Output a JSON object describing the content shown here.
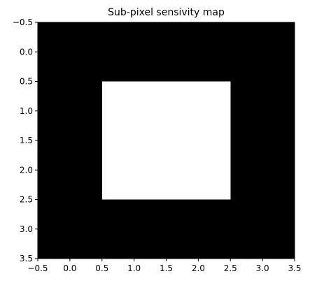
{
  "chart_data": {
    "type": "heatmap",
    "title": "Sub-pixel sensivity map",
    "xlabel": "",
    "ylabel": "",
    "xlim": [
      -0.5,
      3.5
    ],
    "ylim": [
      3.5,
      -0.5
    ],
    "y_axis_inverted": true,
    "xticks": [
      -0.5,
      0.0,
      0.5,
      1.0,
      1.5,
      2.0,
      2.5,
      3.0,
      3.5
    ],
    "xtick_labels": [
      "−0.5",
      "0.0",
      "0.5",
      "1.0",
      "1.5",
      "2.0",
      "2.5",
      "3.0",
      "3.5"
    ],
    "yticks": [
      -0.5,
      0.0,
      0.5,
      1.0,
      1.5,
      2.0,
      2.5,
      3.0,
      3.5
    ],
    "ytick_labels": [
      "−0.5",
      "0.0",
      "0.5",
      "1.0",
      "1.5",
      "2.0",
      "2.5",
      "3.0",
      "3.5"
    ],
    "colormap": "gray",
    "colors": {
      "low": "#000000",
      "high": "#ffffff"
    },
    "matrix": [
      [
        0,
        0,
        0,
        0
      ],
      [
        0,
        1,
        1,
        0
      ],
      [
        0,
        1,
        1,
        0
      ],
      [
        0,
        0,
        0,
        0
      ]
    ],
    "grid": false
  }
}
